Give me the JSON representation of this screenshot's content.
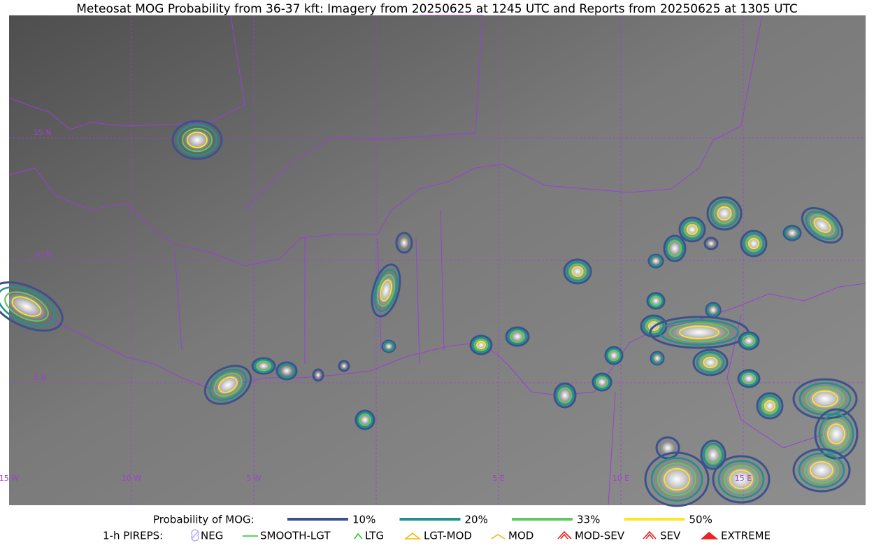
{
  "title": "Meteosat MOG Probability from 36-37 kft: Imagery from 20250625 at 1245 UTC and Reports from 20250625 at 1305 UTC",
  "map": {
    "lat_labels": [
      "15 N",
      "10 N",
      "5 N"
    ],
    "lon_labels": [
      "15 W",
      "10 W",
      "5 W",
      "5 E",
      "10 E",
      "15 E"
    ]
  },
  "legend": {
    "probability": {
      "label": "Probability of MOG:",
      "levels": [
        {
          "label": "10%",
          "color": "#3b528b"
        },
        {
          "label": "20%",
          "color": "#21918c"
        },
        {
          "label": "33%",
          "color": "#5ec962"
        },
        {
          "label": "50%",
          "color": "#fde725"
        }
      ]
    },
    "pireps": {
      "label": "1-h PIREPS:",
      "items": [
        "NEG",
        "SMOOTH-LGT",
        "LTG",
        "LGT-MOD",
        "MOD",
        "MOD-SEV",
        "SEV",
        "EXTREME"
      ]
    }
  }
}
